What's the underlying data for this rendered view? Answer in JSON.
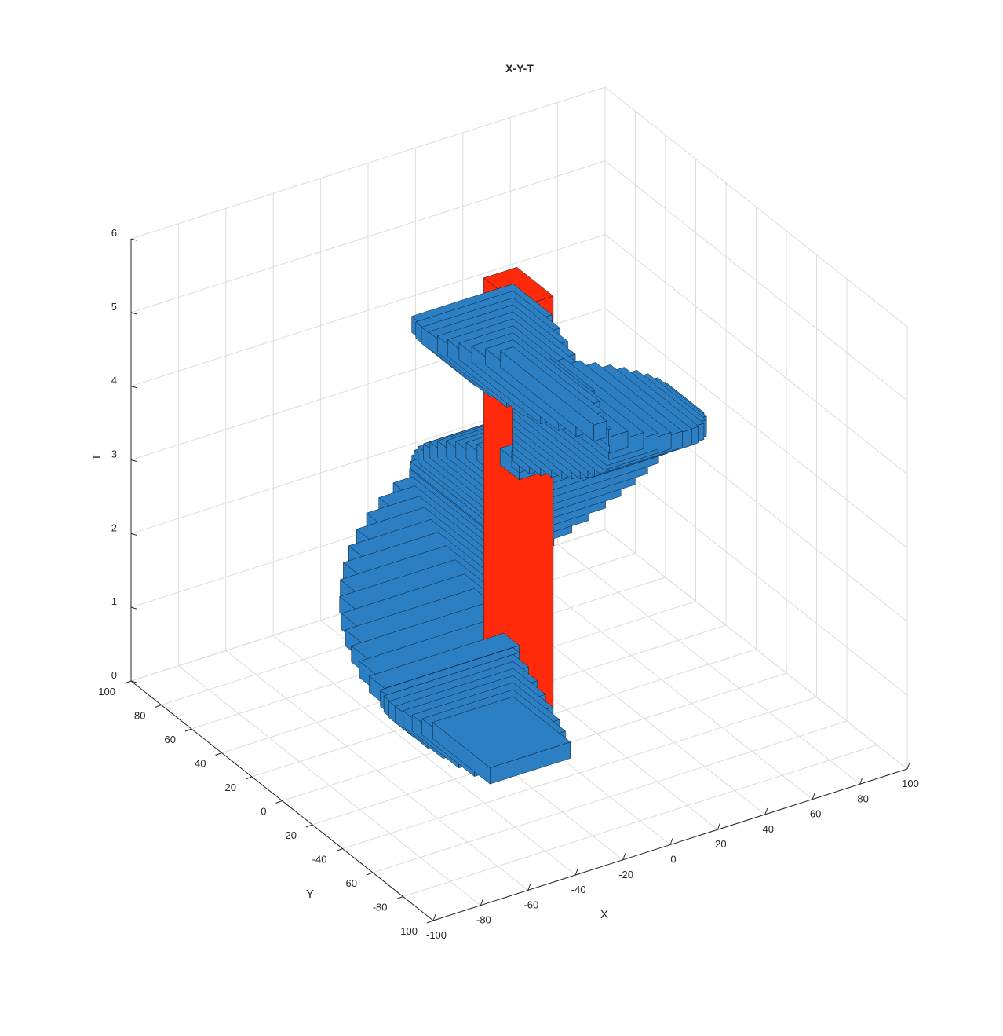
{
  "chart_data": {
    "type": "3d-voxel",
    "title": "X-Y-T",
    "xlabel": "X",
    "ylabel": "Y",
    "zlabel": "T",
    "xlim": [
      -100,
      100
    ],
    "ylim": [
      -100,
      100
    ],
    "zlim": [
      0,
      6
    ],
    "x_ticks": [
      "-100",
      "-80",
      "-60",
      "-40",
      "-20",
      "0",
      "20",
      "40",
      "60",
      "80",
      "100"
    ],
    "y_ticks": [
      "-100",
      "-80",
      "-60",
      "-40",
      "-20",
      "0",
      "20",
      "40",
      "60",
      "80",
      "100"
    ],
    "z_ticks": [
      "0",
      "1",
      "2",
      "3",
      "4",
      "5",
      "6"
    ],
    "grid": true,
    "colors": {
      "voxels": "#2c7fc2",
      "voxel_edges": "#0b1a2b",
      "axis_voxels": "#ff2a0a",
      "grid": "#dcdcdc"
    }
  }
}
